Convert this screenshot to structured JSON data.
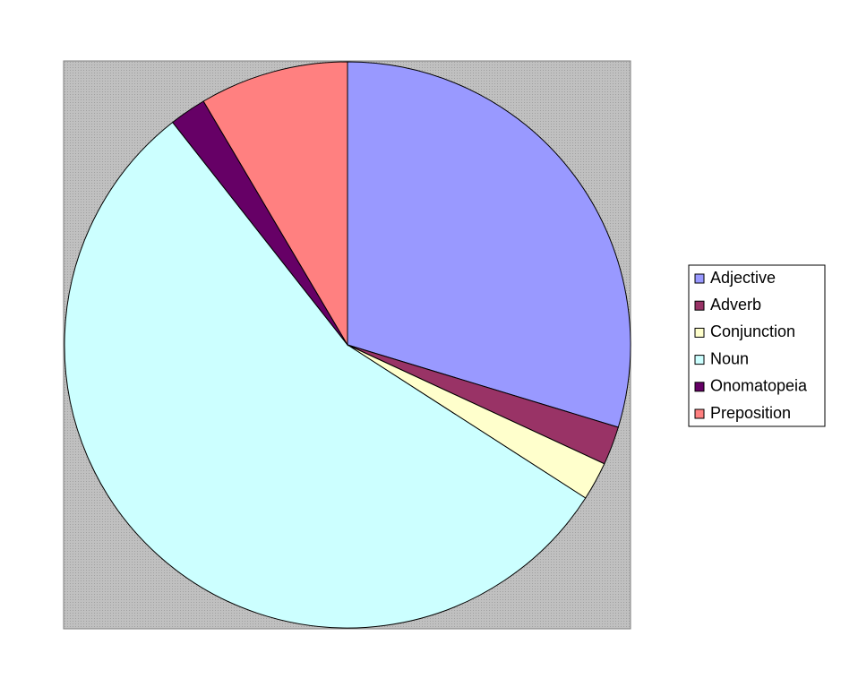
{
  "chart_data": {
    "type": "pie",
    "categories": [
      "Adjective",
      "Adverb",
      "Conjunction",
      "Noun",
      "Onomatopeia",
      "Preposition"
    ],
    "values": [
      29.7,
      2.2,
      2.2,
      55.3,
      2.1,
      8.5
    ],
    "colors": [
      "#9999ff",
      "#993366",
      "#ffffcc",
      "#ccffff",
      "#660066",
      "#ff8080"
    ],
    "legend": "right"
  }
}
